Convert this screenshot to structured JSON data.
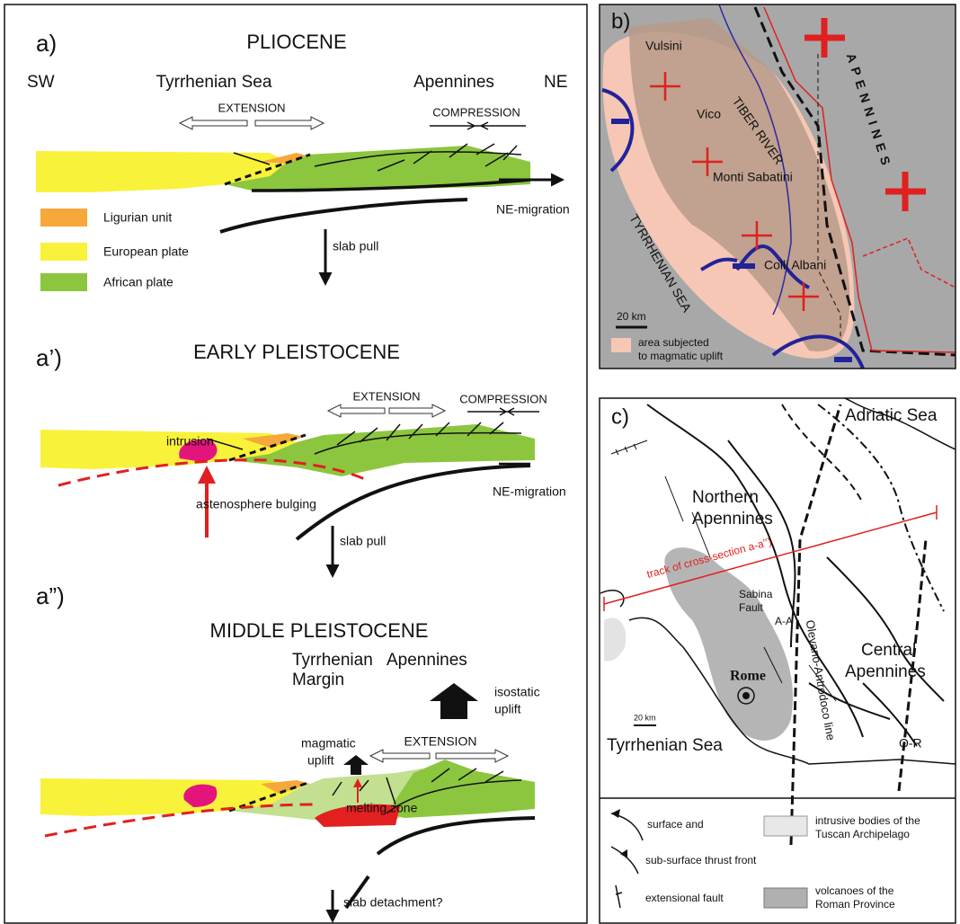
{
  "panel_a": {
    "label": "a)",
    "title": "PLIOCENE",
    "sw": "SW",
    "ne": "NE",
    "tyrrhenian": "Tyrrhenian Sea",
    "apennines": "Apennines",
    "extension": "EXTENSION",
    "compression": "COMPRESSION",
    "migration": "NE-migration",
    "slab": "slab pull",
    "legend": [
      "Ligurian unit",
      "European plate",
      "African plate"
    ]
  },
  "panel_a1": {
    "label": "a’)",
    "title": "EARLY PLEISTOCENE",
    "extension": "EXTENSION",
    "compression": "COMPRESSION",
    "intrusion": "intrusion",
    "bulging": "astenosphere bulging",
    "migration": "NE-migration",
    "slab": "slab pull"
  },
  "panel_a2": {
    "label": "a”)",
    "title": "MIDDLE PLEISTOCENE",
    "margin": [
      "Tyrrhenian",
      "Margin"
    ],
    "apennines": "Apennines",
    "isostatic": [
      "isostatic",
      "uplift"
    ],
    "magmatic": [
      "magmatic",
      "uplift"
    ],
    "extension": "EXTENSION",
    "melting": "melting zone",
    "slab": "slab detachment?"
  },
  "panel_b": {
    "label": "b)",
    "places": [
      "Vulsini",
      "Vico",
      "Monti Sabatini",
      "Colli Albani"
    ],
    "river": "TIBER RIVER",
    "sea": "TYRRHENIAN SEA",
    "apennines": "APENNINES",
    "scale": "20 km",
    "legend": [
      "area subjected",
      "to magmatic uplift"
    ]
  },
  "panel_c": {
    "label": "c)",
    "adriatic": "Adriatic Sea",
    "northern": [
      "Northern",
      "Apennines"
    ],
    "central": [
      "Central",
      "Apennines"
    ],
    "sabina": [
      "Sabina",
      "Fault"
    ],
    "aa": "A-A",
    "olevano": "Olevano-Antrodoco line",
    "rome": "Rome",
    "scale": "20 km",
    "tyrrhenian": "Tyrrhenian Sea",
    "or": "O-R",
    "track": "track of cross-section a-a’’)",
    "legend": {
      "thrust": [
        "surface and",
        "sub-surface thrust front"
      ],
      "extensional": "extensional fault",
      "intrusive": [
        "intrusive bodies of the",
        "Tuscan Archipelago"
      ],
      "volcanoes": [
        "volcanoes of the",
        "Roman Province"
      ]
    }
  }
}
